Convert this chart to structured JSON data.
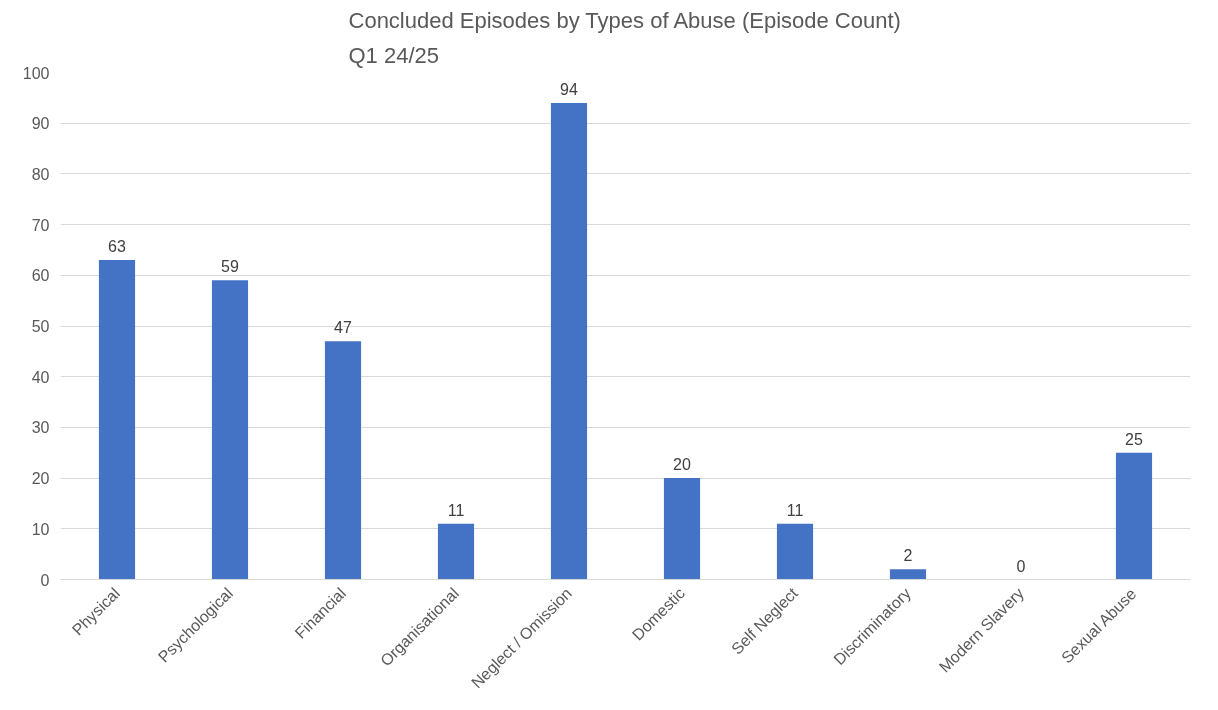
{
  "chart_data": {
    "type": "bar",
    "title": "Concluded Episodes by Types of Abuse (Episode Count)\nQ1 24/25",
    "categories": [
      "Physical",
      "Psychological",
      "Financial",
      "Organisational",
      "Neglect / Omission",
      "Domestic",
      "Self Neglect",
      "Discriminatory",
      "Modern Slavery",
      "Sexual Abuse"
    ],
    "values": [
      63,
      59,
      47,
      11,
      94,
      20,
      11,
      2,
      0,
      25
    ],
    "color": "#4472c4",
    "ylim": [
      0,
      100
    ],
    "yticks": [
      0,
      10,
      20,
      30,
      40,
      50,
      60,
      70,
      80,
      90,
      100
    ],
    "grid": "y",
    "data_labels": true
  }
}
